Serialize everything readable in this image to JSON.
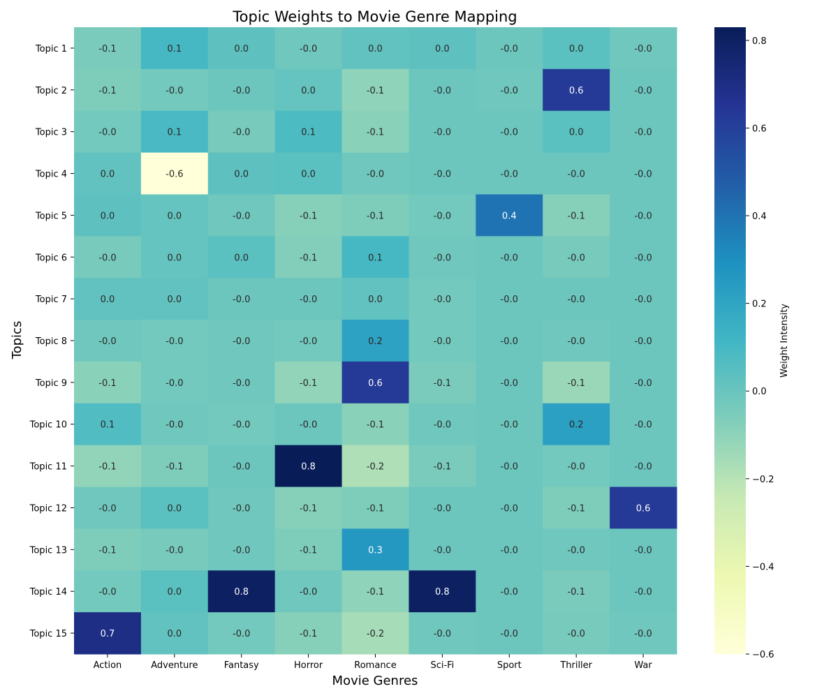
{
  "chart_data": {
    "type": "heatmap",
    "title": "Topic Weights to Movie Genre Mapping",
    "xlabel": "Movie Genres",
    "ylabel": "Topics",
    "x_categories": [
      "Action",
      "Adventure",
      "Fantasy",
      "Horror",
      "Romance",
      "Sci-Fi",
      "Sport",
      "Thriller",
      "War"
    ],
    "y_categories": [
      "Topic 1",
      "Topic 2",
      "Topic 3",
      "Topic 4",
      "Topic 5",
      "Topic 6",
      "Topic 7",
      "Topic 8",
      "Topic 9",
      "Topic 10",
      "Topic 11",
      "Topic 12",
      "Topic 13",
      "Topic 14",
      "Topic 15"
    ],
    "values": [
      [
        -0.05,
        0.1,
        0.03,
        -0.02,
        0.02,
        0.03,
        -0.01,
        0.04,
        -0.02
      ],
      [
        -0.06,
        -0.03,
        -0.01,
        0.01,
        -0.1,
        -0.01,
        -0.02,
        0.63,
        -0.01
      ],
      [
        -0.03,
        0.09,
        -0.04,
        0.08,
        -0.09,
        -0.01,
        -0.01,
        0.04,
        -0.01
      ],
      [
        0.02,
        -0.6,
        0.03,
        0.04,
        -0.02,
        -0.01,
        -0.01,
        -0.01,
        -0.01
      ],
      [
        0.03,
        0.01,
        -0.02,
        -0.08,
        -0.06,
        -0.03,
        0.4,
        -0.08,
        -0.01
      ],
      [
        -0.04,
        0.01,
        0.04,
        -0.07,
        0.1,
        -0.02,
        -0.01,
        -0.04,
        -0.01
      ],
      [
        0.02,
        0.02,
        -0.01,
        -0.01,
        0.02,
        -0.03,
        -0.01,
        -0.01,
        -0.01
      ],
      [
        -0.02,
        -0.03,
        -0.02,
        -0.03,
        0.21,
        -0.03,
        -0.01,
        -0.02,
        -0.01
      ],
      [
        -0.09,
        -0.03,
        -0.02,
        -0.11,
        0.63,
        -0.05,
        -0.01,
        -0.13,
        -0.01
      ],
      [
        0.07,
        -0.02,
        -0.03,
        -0.01,
        -0.09,
        -0.02,
        -0.01,
        0.22,
        -0.01
      ],
      [
        -0.11,
        -0.06,
        -0.01,
        0.83,
        -0.18,
        -0.05,
        -0.01,
        -0.03,
        -0.01
      ],
      [
        -0.02,
        0.04,
        -0.02,
        -0.08,
        -0.06,
        -0.01,
        -0.01,
        -0.06,
        0.63
      ],
      [
        -0.06,
        -0.04,
        -0.02,
        -0.06,
        0.26,
        -0.01,
        -0.01,
        -0.02,
        -0.01
      ],
      [
        -0.03,
        0.04,
        0.8,
        -0.02,
        -0.1,
        0.8,
        -0.01,
        -0.05,
        -0.01
      ],
      [
        0.7,
        0.02,
        -0.03,
        -0.08,
        -0.16,
        -0.02,
        -0.01,
        -0.04,
        -0.02
      ]
    ],
    "display_labels": [
      [
        "-0.1",
        "0.1",
        "0.0",
        "-0.0",
        "0.0",
        "0.0",
        "-0.0",
        "0.0",
        "-0.0"
      ],
      [
        "-0.1",
        "-0.0",
        "-0.0",
        "0.0",
        "-0.1",
        "-0.0",
        "-0.0",
        "0.6",
        "-0.0"
      ],
      [
        "-0.0",
        "0.1",
        "-0.0",
        "0.1",
        "-0.1",
        "-0.0",
        "-0.0",
        "0.0",
        "-0.0"
      ],
      [
        "0.0",
        "-0.6",
        "0.0",
        "0.0",
        "-0.0",
        "-0.0",
        "-0.0",
        "-0.0",
        "-0.0"
      ],
      [
        "0.0",
        "0.0",
        "-0.0",
        "-0.1",
        "-0.1",
        "-0.0",
        "0.4",
        "-0.1",
        "-0.0"
      ],
      [
        "-0.0",
        "0.0",
        "0.0",
        "-0.1",
        "0.1",
        "-0.0",
        "-0.0",
        "-0.0",
        "-0.0"
      ],
      [
        "0.0",
        "0.0",
        "-0.0",
        "-0.0",
        "0.0",
        "-0.0",
        "-0.0",
        "-0.0",
        "-0.0"
      ],
      [
        "-0.0",
        "-0.0",
        "-0.0",
        "-0.0",
        "0.2",
        "-0.0",
        "-0.0",
        "-0.0",
        "-0.0"
      ],
      [
        "-0.1",
        "-0.0",
        "-0.0",
        "-0.1",
        "0.6",
        "-0.1",
        "-0.0",
        "-0.1",
        "-0.0"
      ],
      [
        "0.1",
        "-0.0",
        "-0.0",
        "-0.0",
        "-0.1",
        "-0.0",
        "-0.0",
        "0.2",
        "-0.0"
      ],
      [
        "-0.1",
        "-0.1",
        "-0.0",
        "0.8",
        "-0.2",
        "-0.1",
        "-0.0",
        "-0.0",
        "-0.0"
      ],
      [
        "-0.0",
        "0.0",
        "-0.0",
        "-0.1",
        "-0.1",
        "-0.0",
        "-0.0",
        "-0.1",
        "0.6"
      ],
      [
        "-0.1",
        "-0.0",
        "-0.0",
        "-0.1",
        "0.3",
        "-0.0",
        "-0.0",
        "-0.0",
        "-0.0"
      ],
      [
        "-0.0",
        "0.0",
        "0.8",
        "-0.0",
        "-0.1",
        "0.8",
        "-0.0",
        "-0.1",
        "-0.0"
      ],
      [
        "0.7",
        "0.0",
        "-0.0",
        "-0.1",
        "-0.2",
        "-0.0",
        "-0.0",
        "-0.0",
        "-0.0"
      ]
    ],
    "colormap": "YlGnBu",
    "colormap_stops": [
      "#ffffd9",
      "#edf8b1",
      "#c7e9b4",
      "#7fcdbb",
      "#41b6c4",
      "#1d91c0",
      "#225ea8",
      "#253494",
      "#081d58"
    ],
    "vmin": -0.6,
    "vmax": 0.83,
    "colorbar": {
      "label": "Weight Intensity",
      "ticks": [
        -0.6,
        -0.4,
        -0.2,
        0.0,
        0.2,
        0.4,
        0.6,
        0.8
      ],
      "tick_labels": [
        "−0.6",
        "−0.4",
        "−0.2",
        "0.0",
        "0.2",
        "0.4",
        "0.6",
        "0.8"
      ]
    },
    "grid": false
  }
}
